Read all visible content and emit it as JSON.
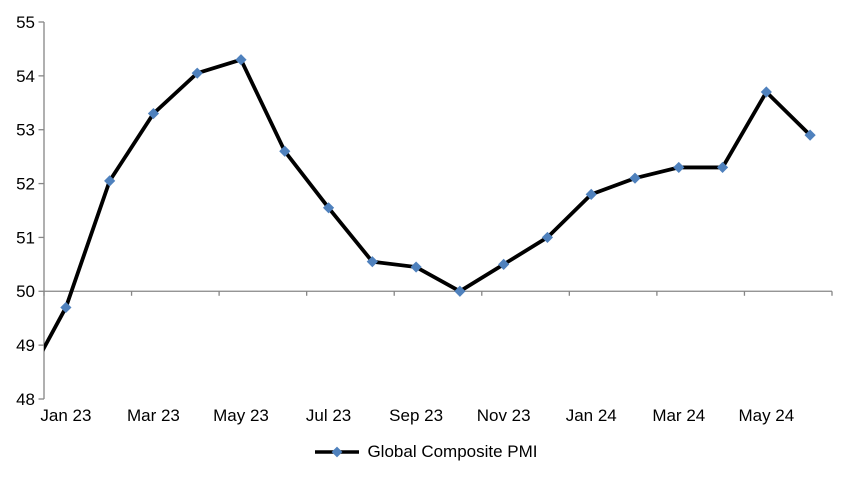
{
  "chart_data": {
    "type": "line",
    "title": "",
    "categories": [
      "Dec 22",
      "Jan 23",
      "Feb 23",
      "Mar 23",
      "Apr 23",
      "May 23",
      "Jun 23",
      "Jul 23",
      "Aug 23",
      "Sep 23",
      "Oct 23",
      "Nov 23",
      "Dec 23",
      "Jan 24",
      "Feb 24",
      "Mar 24",
      "Apr 24",
      "May 24",
      "Jun 24"
    ],
    "series": [
      {
        "name": "Global Composite PMI",
        "values": [
          48.2,
          49.7,
          52.05,
          53.3,
          54.05,
          54.3,
          52.6,
          51.55,
          50.55,
          50.45,
          50.0,
          50.5,
          51.0,
          51.8,
          52.1,
          52.3,
          52.3,
          53.7,
          52.9
        ]
      }
    ],
    "x_tick_labels": [
      "Jan 23",
      "Mar 23",
      "May 23",
      "Jul 23",
      "Sep 23",
      "Nov 23",
      "Jan 24",
      "Mar 24",
      "May 24"
    ],
    "y_ticks": [
      55,
      54,
      53,
      52,
      51,
      50,
      49,
      48
    ],
    "y_tick_labels": [
      "55",
      "54",
      "53",
      "52",
      "51",
      "50",
      "49",
      "48"
    ],
    "ylim": [
      48,
      55
    ],
    "x_axis_cross_value": 50,
    "x_axis_label_position": "low",
    "first_point_clipped_at_left_edge": true,
    "grid": "off",
    "legend_position": "bottom-center",
    "marker_shape": "diamond",
    "colors": {
      "line": "#000000",
      "marker": "#4F81BD",
      "axis": "#868686",
      "text": "#000000",
      "background": "#FFFFFF"
    }
  }
}
